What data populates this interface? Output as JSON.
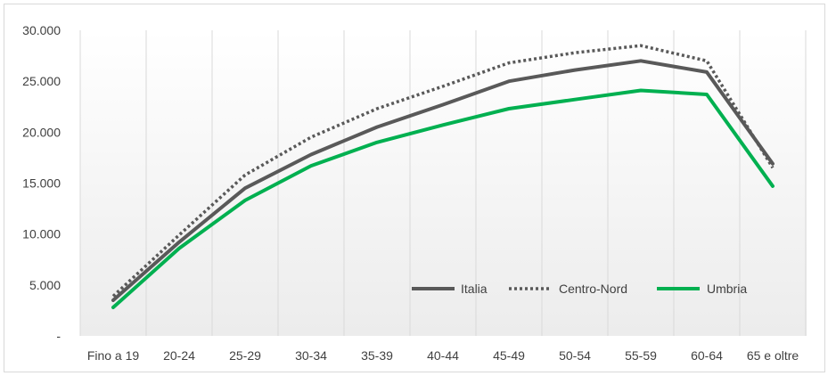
{
  "chart_data": {
    "type": "line",
    "categories": [
      "Fino a 19",
      "20-24",
      "25-29",
      "30-34",
      "35-39",
      "40-44",
      "45-49",
      "50-54",
      "55-59",
      "60-64",
      "65 e oltre"
    ],
    "series": [
      {
        "name": "Italia",
        "color": "#595959",
        "dash": "solid",
        "values": [
          3500,
          9200,
          14500,
          17800,
          20500,
          22700,
          25000,
          26100,
          27000,
          25900,
          16900
        ]
      },
      {
        "name": "Centro-Nord",
        "color": "#595959",
        "dash": "dotted",
        "values": [
          3900,
          9900,
          15800,
          19500,
          22300,
          24500,
          26800,
          27800,
          28500,
          27000,
          16500
        ]
      },
      {
        "name": "Umbria",
        "color": "#00b050",
        "dash": "solid",
        "values": [
          2800,
          8600,
          13300,
          16700,
          19000,
          20700,
          22300,
          23200,
          24100,
          23700,
          14700
        ]
      }
    ],
    "y_ticks": [
      "-",
      "5.000",
      "10.000",
      "15.000",
      "20.000",
      "25.000",
      "30.000"
    ],
    "y_tick_values": [
      0,
      5000,
      10000,
      15000,
      20000,
      25000,
      30000
    ],
    "ylim": [
      0,
      30000
    ],
    "grid": "vertical",
    "legend_position": "bottom-right inside plot",
    "background_gradient": [
      "#ffffff",
      "#ececec"
    ],
    "title": "",
    "xlabel": "",
    "ylabel": ""
  }
}
